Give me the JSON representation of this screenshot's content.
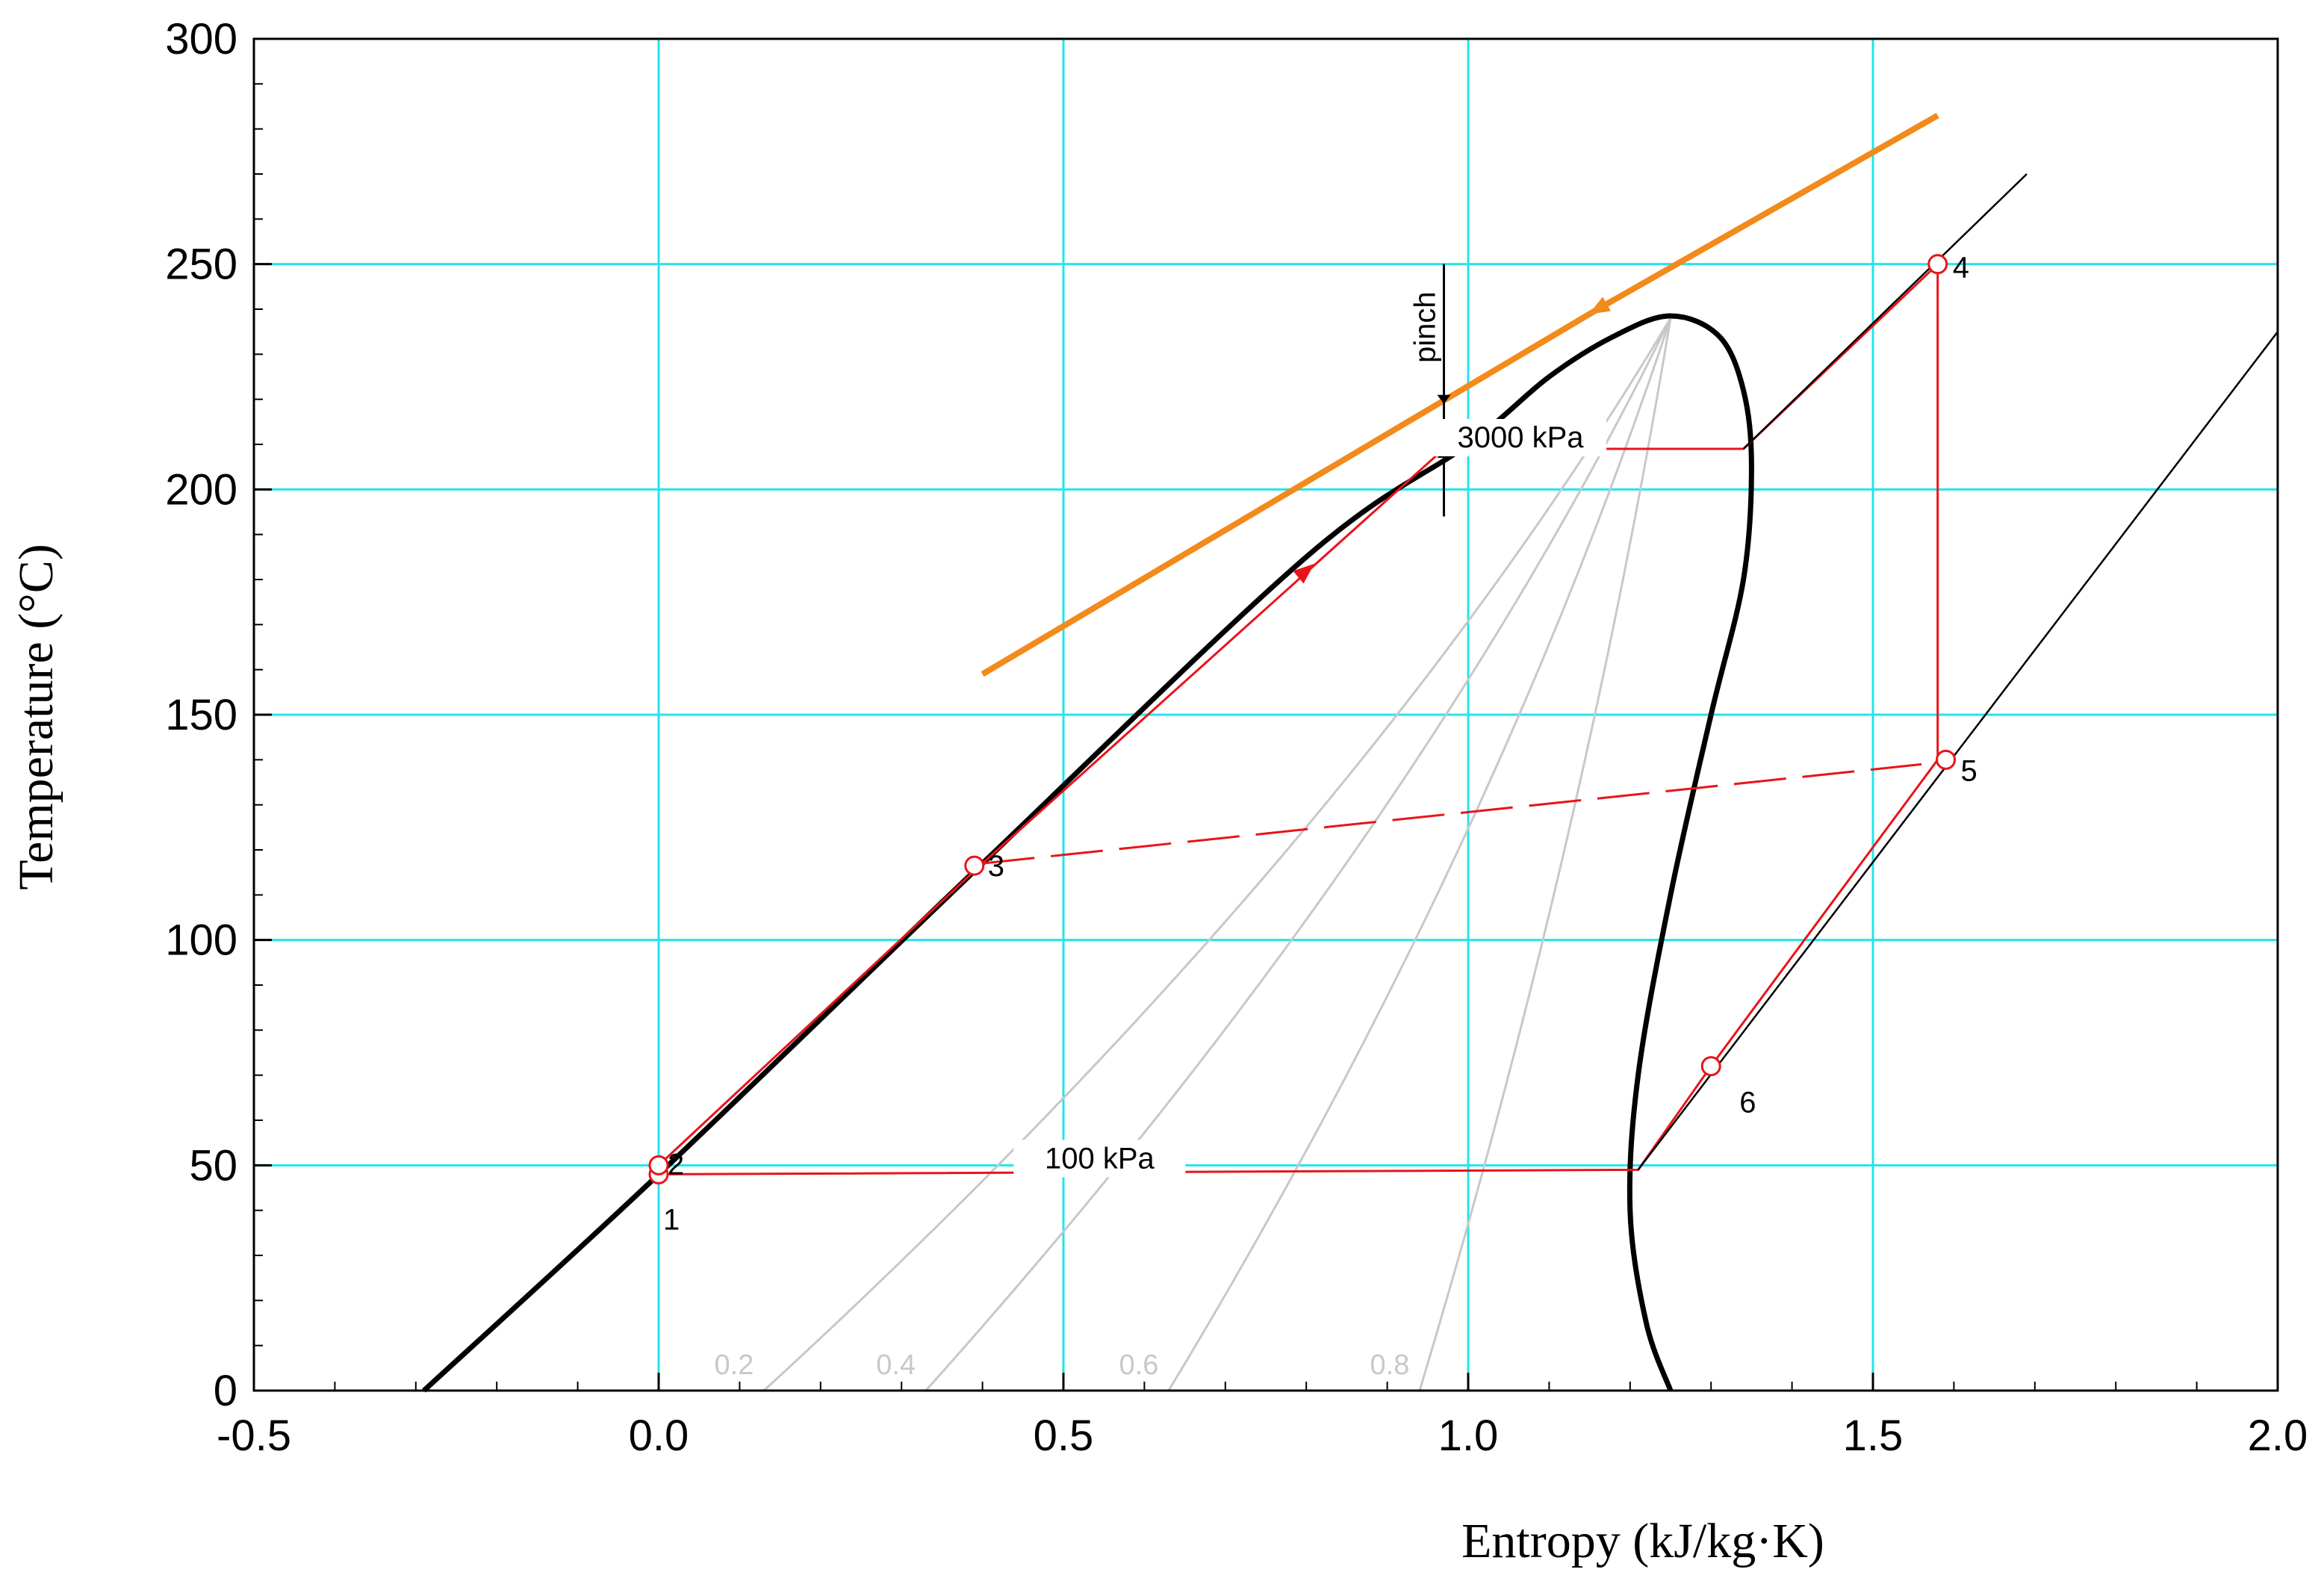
{
  "chart_data": {
    "type": "line",
    "title": "",
    "xlabel": "Entropy (kJ/kg·K)",
    "ylabel": "Temperature (°C)",
    "xlim": [
      -0.5,
      2.0
    ],
    "ylim": [
      0,
      300
    ],
    "x_ticks": [
      -0.5,
      0.0,
      0.5,
      1.0,
      1.5,
      2.0
    ],
    "x_tick_labels": [
      "-0.5",
      "0.0",
      "0.5",
      "1.0",
      "1.5",
      "2.0"
    ],
    "y_ticks": [
      0,
      50,
      100,
      150,
      200,
      250,
      300
    ],
    "y_tick_labels": [
      "0",
      "50",
      "100",
      "150",
      "200",
      "250",
      "300"
    ],
    "grid": true,
    "colors": {
      "grid": "#22e5ee",
      "cycle": "#e8141a",
      "heat_source": "#f28a1c",
      "dome": "#000000",
      "quality": "#c8c8c8",
      "isobar": "#000000"
    },
    "series": [
      {
        "name": "saturation-dome",
        "x": [
          -0.29,
          0.0,
          0.4,
          0.8,
          1.0,
          1.1,
          1.18,
          1.25,
          1.31,
          1.34,
          1.35,
          1.34,
          1.3,
          1.25,
          1.21,
          1.2,
          1.22,
          1.25
        ],
        "y": [
          0,
          48,
          117,
          185,
          210,
          225,
          234,
          238.5,
          234,
          222,
          205,
          180,
          150,
          110,
          70,
          40,
          15,
          0
        ]
      },
      {
        "name": "heat-source",
        "x": [
          0.4,
          1.16,
          1.58
        ],
        "y": [
          159,
          240,
          283
        ]
      },
      {
        "name": "cycle",
        "x": [
          0.0,
          0.0,
          0.4,
          0.97,
          1.34,
          1.58,
          1.58,
          1.3,
          1.21,
          0.0
        ],
        "y": [
          48,
          50,
          117,
          209,
          209,
          250,
          140,
          72,
          49,
          48
        ]
      },
      {
        "name": "isobar-3000kPa-vapor",
        "x": [
          1.34,
          1.69
        ],
        "y": [
          209,
          270
        ]
      },
      {
        "name": "isobar-100kPa-vapor",
        "x": [
          1.21,
          2.0
        ],
        "y": [
          49,
          235
        ]
      },
      {
        "name": "recuperator-link",
        "x": [
          0.4,
          1.56
        ],
        "y": [
          117,
          139
        ]
      }
    ],
    "quality_lines": [
      {
        "label": "0.2",
        "x0": 0.13,
        "y0": 0
      },
      {
        "label": "0.4",
        "x0": 0.33,
        "y0": 0
      },
      {
        "label": "0.6",
        "x0": 0.63,
        "y0": 0
      },
      {
        "label": "0.8",
        "x0": 0.94,
        "y0": 0
      }
    ],
    "state_points": [
      {
        "label": "1",
        "x": 0.0,
        "y": 48
      },
      {
        "label": "2",
        "x": 0.0,
        "y": 50
      },
      {
        "label": "3",
        "x": 0.39,
        "y": 116.5
      },
      {
        "label": "4",
        "x": 1.58,
        "y": 250
      },
      {
        "label": "5",
        "x": 1.59,
        "y": 140
      },
      {
        "label": "6",
        "x": 1.3,
        "y": 72
      }
    ],
    "annotations": {
      "pinch": {
        "text": "pinch",
        "x": 0.97,
        "y_top": 219,
        "y_bottom": 209
      },
      "isobar_high": {
        "text": "3000 kPa",
        "x": 1.06,
        "y": 210
      },
      "isobar_low": {
        "text": "100 kPa",
        "x": 0.54,
        "y": 50
      }
    }
  }
}
